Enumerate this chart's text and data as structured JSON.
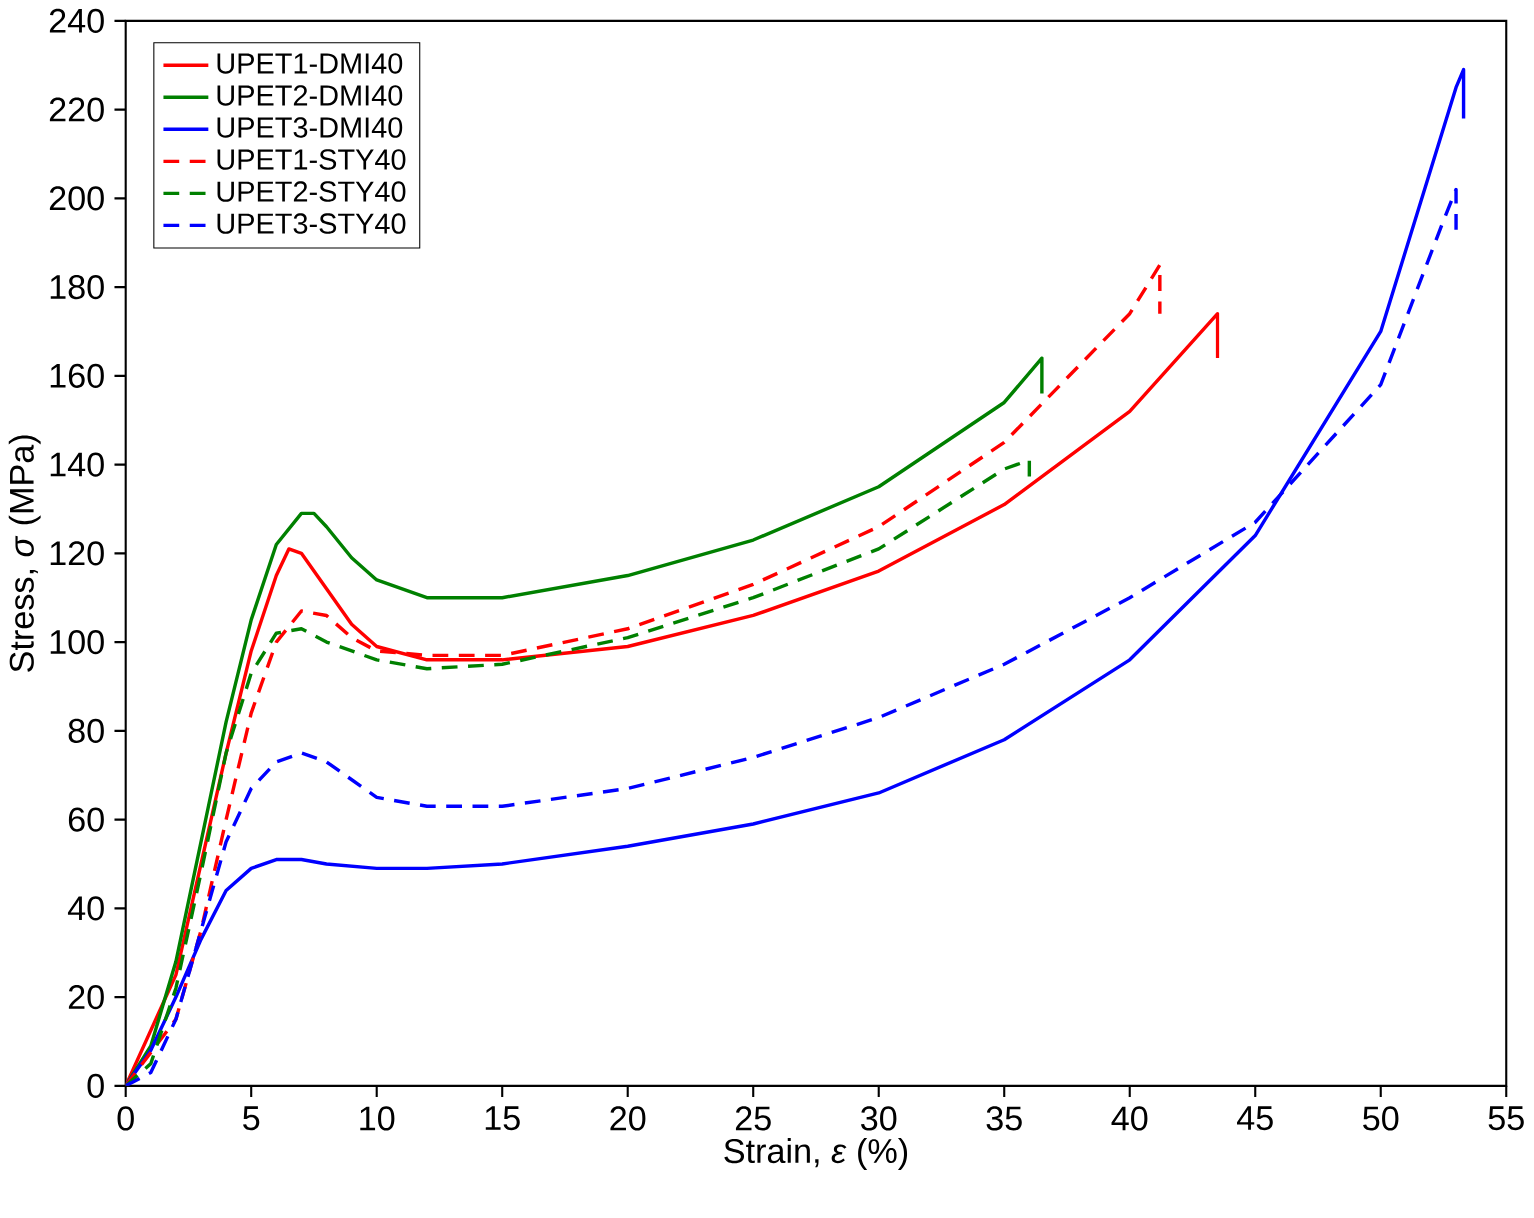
{
  "chart_data": {
    "type": "line",
    "xlabel": "Strain, *ε* (%)",
    "ylabel": "Stress, *σ* (MPa)",
    "xlim": [
      0,
      55
    ],
    "xticks": [
      0,
      5,
      10,
      15,
      20,
      25,
      30,
      35,
      40,
      45,
      50,
      55
    ],
    "ylim": [
      0,
      240
    ],
    "yticks": [
      0,
      20,
      40,
      60,
      80,
      100,
      120,
      140,
      160,
      180,
      200,
      220,
      240
    ],
    "legend": "top left",
    "series": [
      {
        "name": "UPET1-DMI40",
        "color": "#ff0000",
        "line_style": "solid",
        "x": [
          0,
          1,
          2,
          3,
          4,
          5,
          6,
          6.5,
          7,
          8,
          9,
          10,
          12,
          15,
          20,
          25,
          30,
          35,
          40,
          43.5,
          43.5
        ],
        "values": [
          0,
          null,
          25,
          50,
          75,
          98,
          115,
          121,
          120,
          112,
          104,
          99,
          96,
          96,
          99,
          106,
          116,
          131,
          152,
          174,
          164
        ]
      },
      {
        "name": "UPET2-DMI40",
        "color": "#008000",
        "line_style": "solid",
        "x": [
          0,
          1,
          2,
          3,
          4,
          5,
          6,
          7,
          7.5,
          8,
          9,
          10,
          12,
          15,
          20,
          25,
          30,
          35,
          36.5,
          36.5
        ],
        "values": [
          0,
          9,
          28,
          55,
          82,
          105,
          122,
          129,
          129,
          126,
          119,
          114,
          110,
          110,
          115,
          123,
          135,
          154,
          164,
          156
        ]
      },
      {
        "name": "UPET3-DMI40",
        "color": "#0000ff",
        "line_style": "solid",
        "x": [
          0,
          1,
          2,
          3,
          4,
          5,
          6,
          7,
          8,
          10,
          12,
          15,
          20,
          25,
          30,
          35,
          40,
          45,
          50,
          53,
          53.3,
          53.3
        ],
        "values": [
          0,
          8,
          20,
          33,
          44,
          49,
          51,
          51,
          50,
          49,
          49,
          50,
          54,
          59,
          66,
          78,
          96,
          124,
          170,
          225,
          229,
          218
        ]
      },
      {
        "name": "UPET1-STY40",
        "color": "#ff0000",
        "line_style": "dashed",
        "x": [
          0,
          1,
          2,
          3,
          4,
          5,
          6,
          7,
          8,
          9,
          10,
          12,
          15,
          20,
          25,
          30,
          35,
          40,
          41.2,
          41.2
        ],
        "values": [
          0,
          null,
          15,
          35,
          60,
          84,
          100,
          107,
          106,
          101,
          98,
          97,
          97,
          103,
          113,
          126,
          145,
          174,
          185,
          174
        ]
      },
      {
        "name": "UPET2-STY40",
        "color": "#008000",
        "line_style": "dashed",
        "x": [
          0,
          1,
          2,
          3,
          4,
          5,
          6,
          7,
          8,
          10,
          12,
          15,
          20,
          25,
          30,
          35,
          36,
          36
        ],
        "values": [
          0,
          5,
          22,
          48,
          75,
          93,
          102,
          103,
          100,
          96,
          94,
          95,
          101,
          110,
          121,
          139,
          141,
          137
        ]
      },
      {
        "name": "UPET3-STY40",
        "color": "#0000ff",
        "line_style": "dashed",
        "x": [
          0,
          1,
          2,
          3,
          4,
          5,
          6,
          7,
          8,
          10,
          12,
          15,
          20,
          25,
          30,
          35,
          40,
          45,
          50,
          52.5,
          53,
          53
        ],
        "values": [
          0,
          3,
          15,
          35,
          55,
          67,
          73,
          75,
          73,
          65,
          63,
          63,
          67,
          74,
          83,
          95,
          110,
          127,
          158,
          195,
          202,
          192
        ]
      }
    ]
  }
}
